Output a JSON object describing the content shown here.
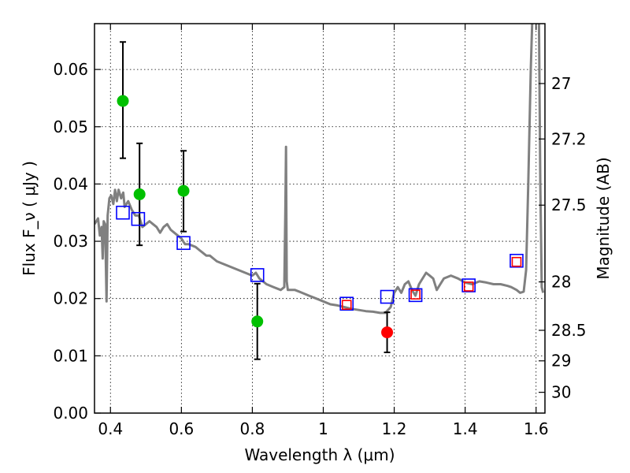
{
  "chart_data": {
    "type": "scatter",
    "xlabel": "Wavelength  λ (μm)",
    "ylabel": "Flux  F_ν  ( μJy )",
    "ylabel_right": "Magnitude (AB)",
    "xlim": [
      0.355,
      1.625
    ],
    "ylim": [
      0.0,
      0.068
    ],
    "grid": true,
    "x_ticks": [
      {
        "value": 0.4,
        "label": "0.4"
      },
      {
        "value": 0.6,
        "label": "0.6"
      },
      {
        "value": 0.8,
        "label": "0.8"
      },
      {
        "value": 1.0,
        "label": "1"
      },
      {
        "value": 1.2,
        "label": "1.2"
      },
      {
        "value": 1.4,
        "label": "1.4"
      },
      {
        "value": 1.6,
        "label": "1.6"
      }
    ],
    "y_ticks": [
      {
        "value": 0.0,
        "label": "0.00"
      },
      {
        "value": 0.01,
        "label": "0.01"
      },
      {
        "value": 0.02,
        "label": "0.02"
      },
      {
        "value": 0.03,
        "label": "0.03"
      },
      {
        "value": 0.04,
        "label": "0.04"
      },
      {
        "value": 0.05,
        "label": "0.05"
      },
      {
        "value": 0.06,
        "label": "0.06"
      }
    ],
    "right_ticks": [
      {
        "label": "27",
        "mag": 27.0
      },
      {
        "label": "27.2",
        "mag": 27.2
      },
      {
        "label": "27.5",
        "mag": 27.5
      },
      {
        "label": "28",
        "mag": 28.0
      },
      {
        "label": "28.5",
        "mag": 28.5
      },
      {
        "label": "29",
        "mag": 29.0
      },
      {
        "label": "30",
        "mag": 30.0
      }
    ],
    "model_spectrum": {
      "color": "#808080",
      "points": [
        [
          0.355,
          0.033
        ],
        [
          0.36,
          0.0335
        ],
        [
          0.365,
          0.034
        ],
        [
          0.37,
          0.031
        ],
        [
          0.375,
          0.0325
        ],
        [
          0.378,
          0.027
        ],
        [
          0.381,
          0.0335
        ],
        [
          0.385,
          0.033
        ],
        [
          0.389,
          0.0195
        ],
        [
          0.392,
          0.0345
        ],
        [
          0.397,
          0.0375
        ],
        [
          0.402,
          0.038
        ],
        [
          0.408,
          0.0365
        ],
        [
          0.413,
          0.039
        ],
        [
          0.418,
          0.037
        ],
        [
          0.423,
          0.039
        ],
        [
          0.43,
          0.0375
        ],
        [
          0.436,
          0.0385
        ],
        [
          0.44,
          0.036
        ],
        [
          0.45,
          0.037
        ],
        [
          0.46,
          0.0355
        ],
        [
          0.47,
          0.0345
        ],
        [
          0.48,
          0.0345
        ],
        [
          0.49,
          0.0325
        ],
        [
          0.5,
          0.033
        ],
        [
          0.51,
          0.0335
        ],
        [
          0.52,
          0.033
        ],
        [
          0.53,
          0.0325
        ],
        [
          0.54,
          0.0315
        ],
        [
          0.55,
          0.0325
        ],
        [
          0.56,
          0.033
        ],
        [
          0.57,
          0.032
        ],
        [
          0.58,
          0.0315
        ],
        [
          0.59,
          0.031
        ],
        [
          0.6,
          0.0305
        ],
        [
          0.61,
          0.0295
        ],
        [
          0.62,
          0.0295
        ],
        [
          0.64,
          0.029
        ],
        [
          0.65,
          0.0285
        ],
        [
          0.66,
          0.028
        ],
        [
          0.67,
          0.0275
        ],
        [
          0.68,
          0.0275
        ],
        [
          0.69,
          0.027
        ],
        [
          0.7,
          0.0265
        ],
        [
          0.72,
          0.026
        ],
        [
          0.74,
          0.0255
        ],
        [
          0.76,
          0.025
        ],
        [
          0.78,
          0.0245
        ],
        [
          0.8,
          0.024
        ],
        [
          0.81,
          0.0245
        ],
        [
          0.82,
          0.0235
        ],
        [
          0.84,
          0.0225
        ],
        [
          0.86,
          0.022
        ],
        [
          0.88,
          0.0215
        ],
        [
          0.89,
          0.022
        ],
        [
          0.893,
          0.035
        ],
        [
          0.895,
          0.0465
        ],
        [
          0.897,
          0.023
        ],
        [
          0.9,
          0.0215
        ],
        [
          0.92,
          0.0215
        ],
        [
          0.94,
          0.021
        ],
        [
          0.96,
          0.0205
        ],
        [
          0.98,
          0.02
        ],
        [
          1.0,
          0.0195
        ],
        [
          1.02,
          0.019
        ],
        [
          1.04,
          0.0188
        ],
        [
          1.06,
          0.0185
        ],
        [
          1.08,
          0.0182
        ],
        [
          1.1,
          0.018
        ],
        [
          1.12,
          0.0178
        ],
        [
          1.14,
          0.0177
        ],
        [
          1.16,
          0.0175
        ],
        [
          1.175,
          0.0175
        ],
        [
          1.19,
          0.0185
        ],
        [
          1.2,
          0.021
        ],
        [
          1.21,
          0.022
        ],
        [
          1.22,
          0.021
        ],
        [
          1.23,
          0.0225
        ],
        [
          1.24,
          0.023
        ],
        [
          1.25,
          0.0215
        ],
        [
          1.26,
          0.0205
        ],
        [
          1.27,
          0.0225
        ],
        [
          1.29,
          0.0245
        ],
        [
          1.3,
          0.024
        ],
        [
          1.31,
          0.0235
        ],
        [
          1.32,
          0.0215
        ],
        [
          1.33,
          0.0225
        ],
        [
          1.34,
          0.0235
        ],
        [
          1.36,
          0.024
        ],
        [
          1.38,
          0.0235
        ],
        [
          1.4,
          0.0228
        ],
        [
          1.42,
          0.0225
        ],
        [
          1.44,
          0.023
        ],
        [
          1.46,
          0.0228
        ],
        [
          1.48,
          0.0225
        ],
        [
          1.5,
          0.0225
        ],
        [
          1.52,
          0.0222
        ],
        [
          1.53,
          0.022
        ],
        [
          1.545,
          0.0215
        ],
        [
          1.555,
          0.021
        ],
        [
          1.565,
          0.0212
        ],
        [
          1.572,
          0.025
        ],
        [
          1.578,
          0.04
        ],
        [
          1.585,
          0.06
        ],
        [
          1.59,
          0.07
        ],
        [
          1.6,
          0.07
        ],
        [
          1.608,
          0.07
        ],
        [
          1.612,
          0.04
        ],
        [
          1.616,
          0.022
        ],
        [
          1.62,
          0.021
        ]
      ]
    },
    "series": [
      {
        "marker": "circle",
        "color": "#00c000",
        "points": [
          {
            "x": 0.435,
            "y": 0.0545,
            "ylow": 0.0445,
            "yhigh": 0.0648
          },
          {
            "x": 0.482,
            "y": 0.0382,
            "ylow": 0.0293,
            "yhigh": 0.0471
          },
          {
            "x": 0.606,
            "y": 0.0388,
            "ylow": 0.0317,
            "yhigh": 0.0458
          },
          {
            "x": 0.814,
            "y": 0.016,
            "ylow": 0.0094,
            "yhigh": 0.0226
          }
        ]
      },
      {
        "marker": "circle",
        "color": "#ff0000",
        "points": [
          {
            "x": 1.18,
            "y": 0.0141,
            "ylow": 0.0106,
            "yhigh": 0.0176
          }
        ]
      },
      {
        "marker": "square-open",
        "color": "#0000ff",
        "points": [
          {
            "x": 0.435,
            "y": 0.035
          },
          {
            "x": 0.478,
            "y": 0.0339
          },
          {
            "x": 0.606,
            "y": 0.0297
          },
          {
            "x": 0.814,
            "y": 0.0241
          },
          {
            "x": 1.066,
            "y": 0.0191
          },
          {
            "x": 1.18,
            "y": 0.0203
          },
          {
            "x": 1.26,
            "y": 0.0206
          },
          {
            "x": 1.41,
            "y": 0.0223
          },
          {
            "x": 1.545,
            "y": 0.0266
          }
        ]
      },
      {
        "marker": "square-open",
        "color": "#ff0000",
        "points": [
          {
            "x": 1.066,
            "y": 0.0189
          },
          {
            "x": 1.26,
            "y": 0.0207
          },
          {
            "x": 1.41,
            "y": 0.0221
          },
          {
            "x": 1.545,
            "y": 0.0264
          }
        ]
      }
    ]
  }
}
